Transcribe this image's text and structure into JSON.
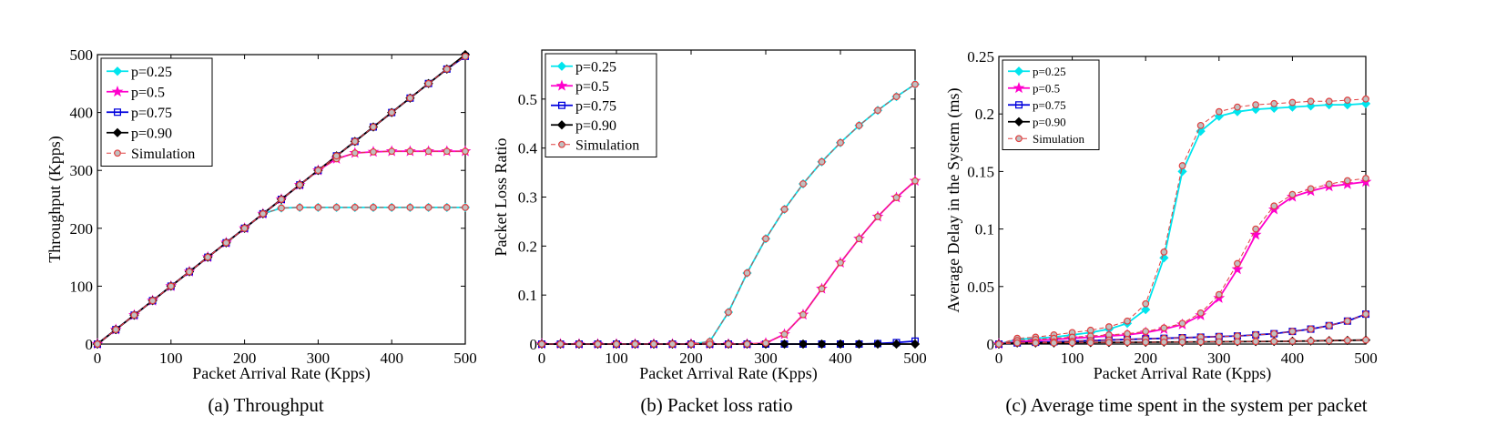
{
  "colors": {
    "p025": "#00e5ee",
    "p05": "#ff00cc",
    "p075": "#0000dd",
    "p090": "#000000",
    "simulation": "#e04040"
  },
  "legend_markers": {
    "p025": "diamond",
    "p05": "star",
    "p075": "square",
    "p090": "diamond",
    "simulation": "circle"
  },
  "chart_data": [
    {
      "type": "line",
      "caption": "(a) Throughput",
      "xlabel": "Packet Arrival Rate (Kpps)",
      "ylabel": "Throughput (Kpps)",
      "xlim": [
        0,
        500
      ],
      "ylim": [
        0,
        500
      ],
      "xticks": [
        0,
        100,
        200,
        300,
        400,
        500
      ],
      "yticks": [
        0,
        100,
        200,
        300,
        400,
        500
      ],
      "x": [
        0,
        25,
        50,
        75,
        100,
        125,
        150,
        175,
        200,
        225,
        250,
        275,
        300,
        325,
        350,
        375,
        400,
        425,
        450,
        475,
        500
      ],
      "legend": [
        "p=0.25",
        "p=0.5",
        "p=0.75",
        "p=0.90",
        "Simulation"
      ],
      "legend_position": "top-left",
      "series": [
        {
          "key": "p025",
          "values": [
            0,
            25,
            50,
            75,
            100,
            125,
            150,
            175,
            200,
            225,
            235,
            236,
            236,
            236,
            236,
            236,
            236,
            236,
            236,
            236,
            236
          ]
        },
        {
          "key": "p05",
          "values": [
            0,
            25,
            50,
            75,
            100,
            125,
            150,
            175,
            200,
            225,
            250,
            275,
            300,
            320,
            330,
            332,
            333,
            333,
            333,
            333,
            333
          ]
        },
        {
          "key": "p075",
          "values": [
            0,
            25,
            50,
            75,
            100,
            125,
            150,
            175,
            200,
            225,
            250,
            275,
            300,
            325,
            350,
            375,
            400,
            425,
            450,
            475,
            497
          ]
        },
        {
          "key": "p090",
          "values": [
            0,
            25,
            50,
            75,
            100,
            125,
            150,
            175,
            200,
            225,
            250,
            275,
            300,
            325,
            350,
            375,
            400,
            425,
            450,
            475,
            500
          ]
        },
        {
          "key": "simulation",
          "values": [
            0,
            25,
            50,
            75,
            100,
            125,
            150,
            175,
            200,
            225,
            235,
            236,
            236,
            236,
            236,
            236,
            236,
            236,
            236,
            236,
            236
          ]
        },
        {
          "key": "simulation",
          "values": [
            0,
            25,
            50,
            75,
            100,
            125,
            150,
            175,
            200,
            225,
            250,
            275,
            300,
            320,
            330,
            332,
            333,
            333,
            333,
            333,
            333
          ]
        },
        {
          "key": "simulation",
          "values": [
            0,
            25,
            50,
            75,
            100,
            125,
            150,
            175,
            200,
            225,
            250,
            275,
            300,
            325,
            350,
            375,
            400,
            425,
            450,
            475,
            497
          ]
        }
      ]
    },
    {
      "type": "line",
      "caption": "(b) Packet loss ratio",
      "xlabel": "Packet Arrival Rate (Kpps)",
      "ylabel": "Packet Loss Ratio",
      "xlim": [
        0,
        500
      ],
      "ylim": [
        0,
        0.6
      ],
      "xticks": [
        0,
        100,
        200,
        300,
        400,
        500
      ],
      "yticks": [
        0,
        0.1,
        0.2,
        0.3,
        0.4,
        0.5
      ],
      "x": [
        0,
        25,
        50,
        75,
        100,
        125,
        150,
        175,
        200,
        225,
        250,
        275,
        300,
        325,
        350,
        375,
        400,
        425,
        450,
        475,
        500
      ],
      "legend": [
        "p=0.25",
        "p=0.5",
        "p=0.75",
        "p=0.90",
        "Simulation"
      ],
      "legend_position": "top-left",
      "series": [
        {
          "key": "p025",
          "values": [
            0,
            0,
            0,
            0,
            0,
            0,
            0,
            0,
            0,
            0.005,
            0.065,
            0.145,
            0.215,
            0.275,
            0.327,
            0.372,
            0.411,
            0.446,
            0.477,
            0.505,
            0.53
          ]
        },
        {
          "key": "p05",
          "values": [
            0,
            0,
            0,
            0,
            0,
            0,
            0,
            0,
            0,
            0,
            0,
            0,
            0.002,
            0.02,
            0.06,
            0.113,
            0.166,
            0.215,
            0.26,
            0.299,
            0.333
          ]
        },
        {
          "key": "p075",
          "values": [
            0,
            0,
            0,
            0,
            0,
            0,
            0,
            0,
            0,
            0,
            0,
            0,
            0,
            0,
            0,
            0,
            0,
            0,
            0.001,
            0.003,
            0.006
          ]
        },
        {
          "key": "p090",
          "values": [
            0,
            0,
            0,
            0,
            0,
            0,
            0,
            0,
            0,
            0,
            0,
            0,
            0,
            0,
            0,
            0,
            0,
            0,
            0,
            0,
            0
          ]
        },
        {
          "key": "simulation",
          "values": [
            0,
            0,
            0,
            0,
            0,
            0,
            0,
            0,
            0,
            0.005,
            0.065,
            0.145,
            0.215,
            0.275,
            0.327,
            0.372,
            0.411,
            0.446,
            0.477,
            0.505,
            0.53
          ]
        },
        {
          "key": "simulation",
          "values": [
            0,
            0,
            0,
            0,
            0,
            0,
            0,
            0,
            0,
            0,
            0,
            0,
            0.002,
            0.02,
            0.06,
            0.113,
            0.166,
            0.215,
            0.26,
            0.299,
            0.333
          ]
        }
      ]
    },
    {
      "type": "line",
      "caption": "(c) Average time spent in the system per packet",
      "xlabel": "Packet Arrival Rate (Kpps)",
      "ylabel": "Average Delay in the System (ms)",
      "xlim": [
        0,
        500
      ],
      "ylim": [
        0,
        0.25
      ],
      "xticks": [
        0,
        100,
        200,
        300,
        400,
        500
      ],
      "yticks": [
        0,
        0.05,
        0.1,
        0.15,
        0.2,
        0.25
      ],
      "x": [
        0,
        25,
        50,
        75,
        100,
        125,
        150,
        175,
        200,
        225,
        250,
        275,
        300,
        325,
        350,
        375,
        400,
        425,
        450,
        475,
        500
      ],
      "legend": [
        "p=0.25",
        "p=0.5",
        "p=0.75",
        "p=0.90",
        "Simulation"
      ],
      "legend_position": "top-left",
      "series": [
        {
          "key": "p025",
          "values": [
            0,
            0.004,
            0.005,
            0.006,
            0.008,
            0.01,
            0.013,
            0.018,
            0.03,
            0.075,
            0.15,
            0.185,
            0.198,
            0.202,
            0.204,
            0.205,
            0.206,
            0.207,
            0.208,
            0.208,
            0.209
          ]
        },
        {
          "key": "p05",
          "values": [
            0,
            0.002,
            0.003,
            0.004,
            0.005,
            0.006,
            0.007,
            0.008,
            0.01,
            0.013,
            0.017,
            0.025,
            0.04,
            0.065,
            0.095,
            0.117,
            0.128,
            0.133,
            0.137,
            0.139,
            0.141
          ]
        },
        {
          "key": "p075",
          "values": [
            0,
            0.001,
            0.0015,
            0.002,
            0.0025,
            0.003,
            0.0035,
            0.004,
            0.0045,
            0.005,
            0.0055,
            0.006,
            0.0065,
            0.007,
            0.008,
            0.009,
            0.011,
            0.013,
            0.016,
            0.02,
            0.026
          ]
        },
        {
          "key": "p090",
          "values": [
            0,
            0.001,
            0.001,
            0.001,
            0.0012,
            0.0013,
            0.0014,
            0.0015,
            0.0016,
            0.0017,
            0.0018,
            0.0019,
            0.002,
            0.0021,
            0.0022,
            0.0023,
            0.0025,
            0.0027,
            0.003,
            0.0032,
            0.0035
          ]
        },
        {
          "key": "simulation",
          "values": [
            0,
            0.005,
            0.006,
            0.008,
            0.01,
            0.012,
            0.015,
            0.02,
            0.035,
            0.08,
            0.155,
            0.19,
            0.202,
            0.206,
            0.208,
            0.209,
            0.21,
            0.211,
            0.211,
            0.212,
            0.213
          ]
        },
        {
          "key": "simulation",
          "values": [
            0,
            0.003,
            0.004,
            0.005,
            0.006,
            0.007,
            0.008,
            0.009,
            0.011,
            0.014,
            0.018,
            0.027,
            0.043,
            0.07,
            0.1,
            0.12,
            0.13,
            0.135,
            0.139,
            0.142,
            0.144
          ]
        },
        {
          "key": "simulation",
          "values": [
            0,
            0.001,
            0.0015,
            0.002,
            0.0025,
            0.003,
            0.0035,
            0.004,
            0.0045,
            0.005,
            0.0055,
            0.006,
            0.0065,
            0.007,
            0.008,
            0.009,
            0.011,
            0.013,
            0.016,
            0.02,
            0.026
          ]
        },
        {
          "key": "simulation",
          "values": [
            0,
            0.001,
            0.001,
            0.001,
            0.0012,
            0.0013,
            0.0014,
            0.0015,
            0.0016,
            0.0017,
            0.0018,
            0.0019,
            0.002,
            0.0021,
            0.0022,
            0.0023,
            0.0025,
            0.0027,
            0.003,
            0.0032,
            0.0035
          ]
        }
      ]
    }
  ]
}
